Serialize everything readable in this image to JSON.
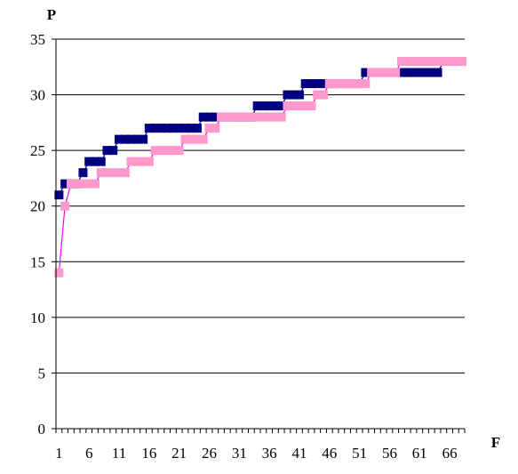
{
  "chart_data": {
    "type": "line",
    "xlabel": "F",
    "ylabel": "P",
    "ylim": [
      0,
      35
    ],
    "yticks": [
      0,
      5,
      10,
      15,
      20,
      25,
      30,
      35
    ],
    "xlim": [
      1,
      68
    ],
    "xtick_labels": [
      1,
      6,
      11,
      16,
      21,
      26,
      31,
      36,
      41,
      46,
      51,
      56,
      61,
      66
    ],
    "grid": "horizontal",
    "legend": "none",
    "series": [
      {
        "color": "#000080",
        "x": [
          1,
          2,
          3,
          4,
          5,
          6,
          7,
          8,
          9,
          10,
          11,
          12,
          13,
          14,
          15,
          16,
          17,
          18,
          19,
          20,
          21,
          22,
          23,
          24,
          25,
          26,
          27,
          28,
          29,
          30,
          31,
          32,
          33,
          34,
          35,
          36,
          37,
          38,
          39,
          40,
          41,
          42,
          43,
          44,
          45,
          46,
          47,
          48,
          49,
          50,
          51,
          52,
          53,
          54,
          55,
          56,
          57,
          58,
          59,
          60,
          61,
          62,
          63,
          64,
          65,
          66,
          67,
          68
        ],
        "values": [
          21,
          22,
          22,
          22,
          23,
          24,
          24,
          24,
          25,
          25,
          26,
          26,
          26,
          26,
          26,
          27,
          27,
          27,
          27,
          27,
          27,
          27,
          27,
          27,
          28,
          28,
          28,
          28,
          28,
          28,
          28,
          28,
          28,
          29,
          29,
          29,
          29,
          29,
          30,
          30,
          30,
          31,
          31,
          31,
          31,
          31,
          31,
          31,
          31,
          31,
          31,
          32,
          32,
          32,
          32,
          32,
          32,
          32,
          32,
          32,
          32,
          32,
          32,
          32,
          33,
          33,
          33,
          33
        ]
      },
      {
        "color": "#ff99cc",
        "x": [
          1,
          2,
          3,
          4,
          5,
          6,
          7,
          8,
          9,
          10,
          11,
          12,
          13,
          14,
          15,
          16,
          17,
          18,
          19,
          20,
          21,
          22,
          23,
          24,
          25,
          26,
          27,
          28,
          29,
          30,
          31,
          32,
          33,
          34,
          35,
          36,
          37,
          38,
          39,
          40,
          41,
          42,
          43,
          44,
          45,
          46,
          47,
          48,
          49,
          50,
          51,
          52,
          53,
          54,
          55,
          56,
          57,
          58,
          59,
          60,
          61,
          62,
          63,
          64,
          65,
          66,
          67,
          68
        ],
        "values": [
          14,
          20,
          22,
          22,
          22,
          22,
          22,
          23,
          23,
          23,
          23,
          23,
          24,
          24,
          24,
          24,
          25,
          25,
          25,
          25,
          25,
          26,
          26,
          26,
          26,
          27,
          27,
          28,
          28,
          28,
          28,
          28,
          28,
          28,
          28,
          28,
          28,
          28,
          29,
          29,
          29,
          29,
          29,
          30,
          30,
          31,
          31,
          31,
          31,
          31,
          31,
          31,
          32,
          32,
          32,
          32,
          32,
          33,
          33,
          33,
          33,
          33,
          33,
          33,
          33,
          33,
          33,
          33
        ]
      }
    ]
  }
}
